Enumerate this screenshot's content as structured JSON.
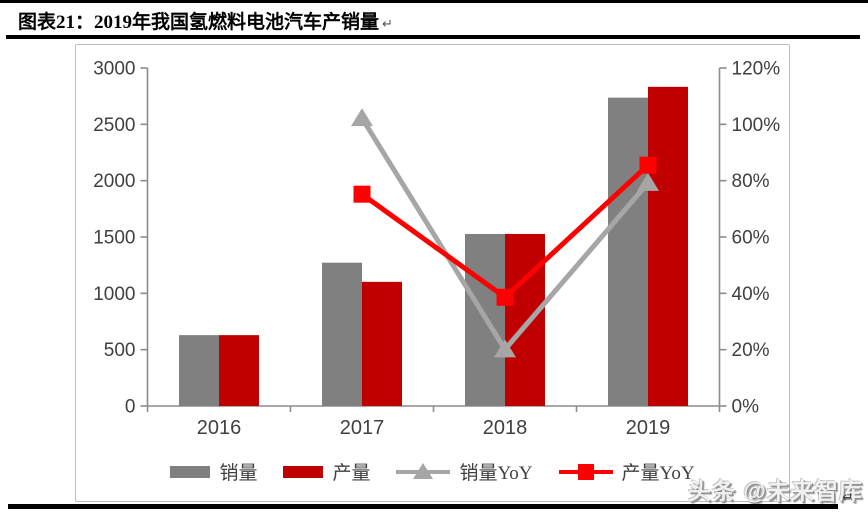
{
  "title": "图表21：2019年我国氢燃料电池汽车产销量",
  "marks": {
    "title_return": "↵",
    "footer_return": "↵"
  },
  "watermark": "头条 @未来智库",
  "chart_data": {
    "type": "bar+line",
    "categories": [
      "2016",
      "2017",
      "2018",
      "2019"
    ],
    "bar_series": [
      {
        "name": "销量",
        "color": "#808080",
        "axis": "left",
        "values": [
          629,
          1272,
          1527,
          2737
        ]
      },
      {
        "name": "产量",
        "color": "#C00000",
        "axis": "left",
        "values": [
          629,
          1102,
          1527,
          2833
        ]
      }
    ],
    "line_series": [
      {
        "name": "销量YoY",
        "color": "#A6A6A6",
        "marker": "triangle",
        "axis": "right",
        "values": [
          null,
          102.2,
          20.1,
          79.2
        ]
      },
      {
        "name": "产量YoY",
        "color": "#FF0000",
        "marker": "square",
        "axis": "right",
        "values": [
          null,
          75.2,
          38.6,
          85.5
        ]
      }
    ],
    "left_axis": {
      "min": 0,
      "max": 3000,
      "step": 500,
      "labels": [
        "0",
        "500",
        "1000",
        "1500",
        "2000",
        "2500",
        "3000"
      ]
    },
    "right_axis": {
      "min": 0,
      "max": 120,
      "step": 20,
      "unit": "%",
      "labels": [
        "0%",
        "20%",
        "40%",
        "60%",
        "80%",
        "100%",
        "120%"
      ]
    },
    "grid": false,
    "legend_position": "bottom",
    "axis_color": "#8c8c8c",
    "tick_label_color": "#404040"
  }
}
